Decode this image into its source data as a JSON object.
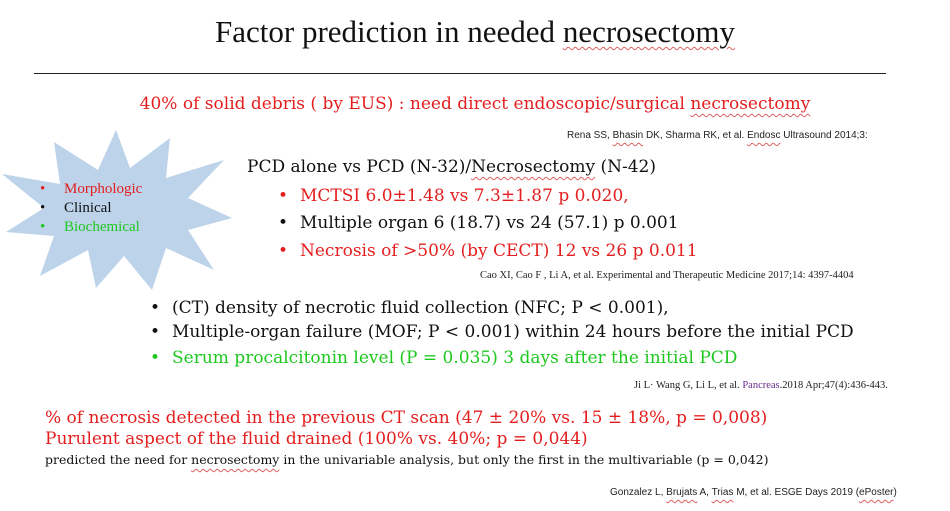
{
  "title": {
    "prefix": "Factor prediction in needed ",
    "underlined": "necrosectomy"
  },
  "headline": {
    "prefix": "40% of solid debris ( by EUS) : need direct endoscopic/surgical ",
    "underlined": "necrosectomy"
  },
  "ref1": {
    "a": "Rena SS, ",
    "b": "Bhasin",
    "c": " DK, Sharma RK, et al. ",
    "d": "Endosc",
    "e": " Ultrasound 2014;3:"
  },
  "star": {
    "color": "#bcd3ea",
    "items": [
      {
        "label": "Morphologic",
        "color": "#e41e1e"
      },
      {
        "label": "Clinical",
        "color": "#111111"
      },
      {
        "label": "Biochemical",
        "color": "#1ec81e"
      }
    ]
  },
  "pcd": {
    "header_prefix": "PCD alone vs PCD (N-32)/",
    "header_underlined": "Necrosectomy",
    "header_suffix": " (N-42)",
    "items": [
      {
        "text": "MCTSI 6.0±1.48 vs 7.3±1.87 p 0.020,",
        "color": "#e41e1e"
      },
      {
        "text": "Multiple organ 6 (18.7)  vs 24 (57.1) p 0.001",
        "color": "#111111"
      },
      {
        "text": "Necrosis of >50% (by CECT) 12  vs 26 p 0.011",
        "color": "#e41e1e"
      }
    ]
  },
  "ref2": "Cao XI, Cao F ,  Li A, et al. Experimental and Therapeutic Medicine 2017;14: 4397-4404",
  "ct": {
    "items": [
      {
        "text": "(CT) density of necrotic fluid collection (NFC; P < 0.001),",
        "color": "#111111"
      },
      {
        "text": "Multiple-organ failure (MOF; P < 0.001) within 24 hours before the initial PCD",
        "color": "#111111"
      },
      {
        "text": "Serum procalcitonin level (P = 0.035) 3 days after the initial PCD",
        "color": "#1ec81e"
      }
    ]
  },
  "ref3": {
    "prefix": "Ji L· Wang G, Li L, et al. ",
    "journal": "Pancreas",
    "suffix": ".2018 Apr;47(4):436-443."
  },
  "bottom": {
    "line1": "% of necrosis detected in the previous CT scan (47 ± 20% vs. 15 ± 18%, p = 0,008)",
    "line2": "Purulent aspect of the fluid drained (100% vs. 40%; p = 0,044)",
    "line3_prefix": "predicted the need for ",
    "line3_underlined": "necrosectomy",
    "line3_suffix": " in the univariable analysis, but only the first in the multivariable (p = 0,042)"
  },
  "ref4": {
    "a": "Gonzalez L, ",
    "b": "Brujats",
    "c": " A, ",
    "d": "Trias",
    "e": " M, et al. ESGE Days 2019 (",
    "f": "ePoster",
    "g": ")"
  }
}
